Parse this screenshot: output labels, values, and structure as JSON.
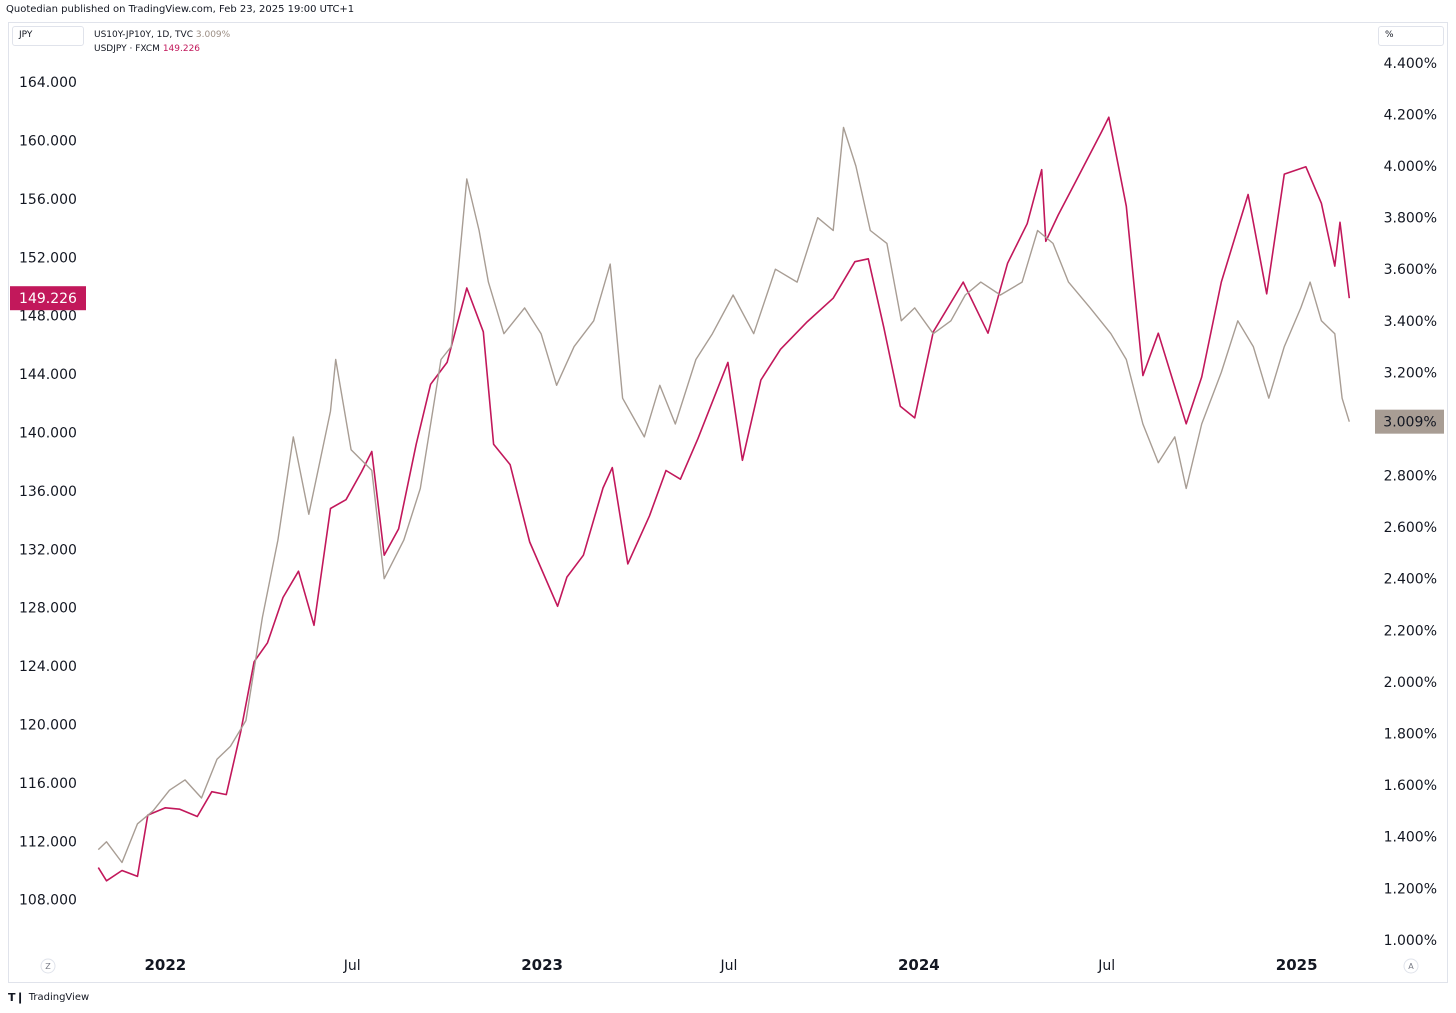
{
  "header": {
    "published": "Quotedian published on TradingView.com, Feb 23, 2025 19:00 UTC+1"
  },
  "left_scale_label": "JPY",
  "right_scale_label": "%",
  "legend": {
    "series1": {
      "name": "US10Y-JP10Y, 1D, TVC",
      "value": "3.009%"
    },
    "series2": {
      "name": "USDJPY · FXCM",
      "value": "149.226"
    }
  },
  "bottom_left_btn": "Z",
  "bottom_right_btn": "A",
  "footer": {
    "brand": "TradingView"
  },
  "colors": {
    "usdjpy": "#c2185b",
    "spread": "#a89d94",
    "grid": "#f0f3fa",
    "text": "#131722"
  },
  "chart_data": {
    "type": "line",
    "x_ticks": [
      "2022",
      "Jul",
      "2023",
      "Jul",
      "2024",
      "Jul",
      "2025"
    ],
    "x_tick_dates": [
      "2022-01-01",
      "2022-07-01",
      "2023-01-01",
      "2023-07-01",
      "2024-01-01",
      "2024-07-01",
      "2025-01-01"
    ],
    "x_range": [
      "2021-10-20",
      "2025-03-15"
    ],
    "y_left_ticks": [
      "108.000",
      "112.000",
      "116.000",
      "120.000",
      "124.000",
      "128.000",
      "132.000",
      "136.000",
      "140.000",
      "144.000",
      "148.000",
      "152.000",
      "156.000",
      "160.000",
      "164.000"
    ],
    "y_left_range": [
      104.9,
      166.2
    ],
    "y_right_ticks": [
      "1.000%",
      "1.200%",
      "1.400%",
      "1.600%",
      "1.800%",
      "2.000%",
      "2.200%",
      "2.400%",
      "2.600%",
      "2.800%",
      "3.000%",
      "3.200%",
      "3.400%",
      "3.600%",
      "3.800%",
      "4.000%",
      "4.200%",
      "4.400%"
    ],
    "y_right_range": [
      0.98,
      4.45
    ],
    "last_left_label": "149.226",
    "last_right_label": "3.009%",
    "series": [
      {
        "name": "USDJPY · FXCM",
        "axis": "left",
        "color": "#c2185b",
        "points": [
          [
            "2021-10-28",
            110.2
          ],
          [
            "2021-11-05",
            109.3
          ],
          [
            "2021-11-20",
            110.0
          ],
          [
            "2021-12-05",
            109.6
          ],
          [
            "2021-12-15",
            113.8
          ],
          [
            "2022-01-01",
            114.3
          ],
          [
            "2022-01-15",
            114.2
          ],
          [
            "2022-02-01",
            113.7
          ],
          [
            "2022-02-15",
            115.4
          ],
          [
            "2022-03-01",
            115.2
          ],
          [
            "2022-03-15",
            119.5
          ],
          [
            "2022-03-28",
            124.3
          ],
          [
            "2022-04-10",
            125.6
          ],
          [
            "2022-04-25",
            128.7
          ],
          [
            "2022-05-10",
            130.5
          ],
          [
            "2022-05-25",
            126.8
          ],
          [
            "2022-06-10",
            134.8
          ],
          [
            "2022-06-25",
            135.4
          ],
          [
            "2022-07-10",
            137.3
          ],
          [
            "2022-07-20",
            138.7
          ],
          [
            "2022-08-01",
            131.6
          ],
          [
            "2022-08-15",
            133.4
          ],
          [
            "2022-09-01",
            139.2
          ],
          [
            "2022-09-15",
            143.3
          ],
          [
            "2022-10-01",
            144.8
          ],
          [
            "2022-10-20",
            149.9
          ],
          [
            "2022-11-05",
            146.9
          ],
          [
            "2022-11-15",
            139.2
          ],
          [
            "2022-12-01",
            137.8
          ],
          [
            "2022-12-20",
            132.5
          ],
          [
            "2023-01-16",
            128.1
          ],
          [
            "2023-01-25",
            130.1
          ],
          [
            "2023-02-10",
            131.6
          ],
          [
            "2023-03-01",
            136.2
          ],
          [
            "2023-03-10",
            137.6
          ],
          [
            "2023-03-25",
            131.0
          ],
          [
            "2023-04-15",
            134.3
          ],
          [
            "2023-05-01",
            137.4
          ],
          [
            "2023-05-15",
            136.8
          ],
          [
            "2023-06-01",
            139.6
          ],
          [
            "2023-06-30",
            144.8
          ],
          [
            "2023-07-14",
            138.1
          ],
          [
            "2023-08-01",
            143.6
          ],
          [
            "2023-08-20",
            145.7
          ],
          [
            "2023-09-15",
            147.6
          ],
          [
            "2023-10-10",
            149.2
          ],
          [
            "2023-10-31",
            151.7
          ],
          [
            "2023-11-13",
            151.9
          ],
          [
            "2023-11-28",
            147.2
          ],
          [
            "2023-12-14",
            141.8
          ],
          [
            "2023-12-28",
            141.0
          ],
          [
            "2024-01-15",
            146.9
          ],
          [
            "2024-02-13",
            150.3
          ],
          [
            "2024-03-08",
            146.8
          ],
          [
            "2024-03-27",
            151.6
          ],
          [
            "2024-04-15",
            154.3
          ],
          [
            "2024-04-29",
            158.0
          ],
          [
            "2024-05-03",
            153.1
          ],
          [
            "2024-05-15",
            154.9
          ],
          [
            "2024-06-01",
            157.2
          ],
          [
            "2024-06-26",
            160.6
          ],
          [
            "2024-07-03",
            161.6
          ],
          [
            "2024-07-20",
            155.5
          ],
          [
            "2024-08-05",
            143.9
          ],
          [
            "2024-08-20",
            146.8
          ],
          [
            "2024-09-16",
            140.6
          ],
          [
            "2024-10-01",
            143.8
          ],
          [
            "2024-10-20",
            150.3
          ],
          [
            "2024-11-15",
            156.3
          ],
          [
            "2024-12-03",
            149.5
          ],
          [
            "2024-12-20",
            157.7
          ],
          [
            "2025-01-10",
            158.2
          ],
          [
            "2025-01-25",
            155.7
          ],
          [
            "2025-02-07",
            151.4
          ],
          [
            "2025-02-12",
            154.4
          ],
          [
            "2025-02-21",
            149.2
          ]
        ]
      },
      {
        "name": "US10Y-JP10Y, 1D, TVC",
        "axis": "right",
        "color": "#a89d94",
        "points": [
          [
            "2021-10-28",
            1.35
          ],
          [
            "2021-11-05",
            1.38
          ],
          [
            "2021-11-20",
            1.3
          ],
          [
            "2021-12-05",
            1.45
          ],
          [
            "2021-12-20",
            1.5
          ],
          [
            "2022-01-05",
            1.58
          ],
          [
            "2022-01-20",
            1.62
          ],
          [
            "2022-02-05",
            1.55
          ],
          [
            "2022-02-20",
            1.7
          ],
          [
            "2022-03-05",
            1.75
          ],
          [
            "2022-03-20",
            1.85
          ],
          [
            "2022-04-05",
            2.25
          ],
          [
            "2022-04-20",
            2.55
          ],
          [
            "2022-05-05",
            2.95
          ],
          [
            "2022-05-20",
            2.65
          ],
          [
            "2022-06-10",
            3.05
          ],
          [
            "2022-06-15",
            3.25
          ],
          [
            "2022-06-30",
            2.9
          ],
          [
            "2022-07-20",
            2.82
          ],
          [
            "2022-08-01",
            2.4
          ],
          [
            "2022-08-20",
            2.55
          ],
          [
            "2022-09-05",
            2.75
          ],
          [
            "2022-09-25",
            3.25
          ],
          [
            "2022-10-05",
            3.3
          ],
          [
            "2022-10-20",
            3.95
          ],
          [
            "2022-11-01",
            3.75
          ],
          [
            "2022-11-10",
            3.55
          ],
          [
            "2022-11-25",
            3.35
          ],
          [
            "2022-12-15",
            3.45
          ],
          [
            "2022-12-31",
            3.35
          ],
          [
            "2023-01-15",
            3.15
          ],
          [
            "2023-02-01",
            3.3
          ],
          [
            "2023-02-20",
            3.4
          ],
          [
            "2023-03-08",
            3.62
          ],
          [
            "2023-03-20",
            3.1
          ],
          [
            "2023-04-10",
            2.95
          ],
          [
            "2023-04-25",
            3.15
          ],
          [
            "2023-05-10",
            3.0
          ],
          [
            "2023-05-30",
            3.25
          ],
          [
            "2023-06-15",
            3.35
          ],
          [
            "2023-07-05",
            3.5
          ],
          [
            "2023-07-25",
            3.35
          ],
          [
            "2023-08-15",
            3.6
          ],
          [
            "2023-09-05",
            3.55
          ],
          [
            "2023-09-25",
            3.8
          ],
          [
            "2023-10-10",
            3.75
          ],
          [
            "2023-10-20",
            4.15
          ],
          [
            "2023-11-01",
            4.0
          ],
          [
            "2023-11-15",
            3.75
          ],
          [
            "2023-12-01",
            3.7
          ],
          [
            "2023-12-15",
            3.4
          ],
          [
            "2023-12-28",
            3.45
          ],
          [
            "2024-01-15",
            3.35
          ],
          [
            "2024-02-01",
            3.4
          ],
          [
            "2024-02-15",
            3.5
          ],
          [
            "2024-03-01",
            3.55
          ],
          [
            "2024-03-20",
            3.5
          ],
          [
            "2024-04-10",
            3.55
          ],
          [
            "2024-04-25",
            3.75
          ],
          [
            "2024-05-10",
            3.7
          ],
          [
            "2024-05-25",
            3.55
          ],
          [
            "2024-06-15",
            3.45
          ],
          [
            "2024-07-05",
            3.35
          ],
          [
            "2024-07-20",
            3.25
          ],
          [
            "2024-08-05",
            3.0
          ],
          [
            "2024-08-20",
            2.85
          ],
          [
            "2024-09-05",
            2.95
          ],
          [
            "2024-09-16",
            2.75
          ],
          [
            "2024-10-01",
            3.0
          ],
          [
            "2024-10-20",
            3.2
          ],
          [
            "2024-11-05",
            3.4
          ],
          [
            "2024-11-20",
            3.3
          ],
          [
            "2024-12-05",
            3.1
          ],
          [
            "2024-12-20",
            3.3
          ],
          [
            "2025-01-05",
            3.45
          ],
          [
            "2025-01-14",
            3.55
          ],
          [
            "2025-01-25",
            3.4
          ],
          [
            "2025-02-07",
            3.35
          ],
          [
            "2025-02-14",
            3.1
          ],
          [
            "2025-02-21",
            3.009
          ]
        ]
      }
    ]
  }
}
